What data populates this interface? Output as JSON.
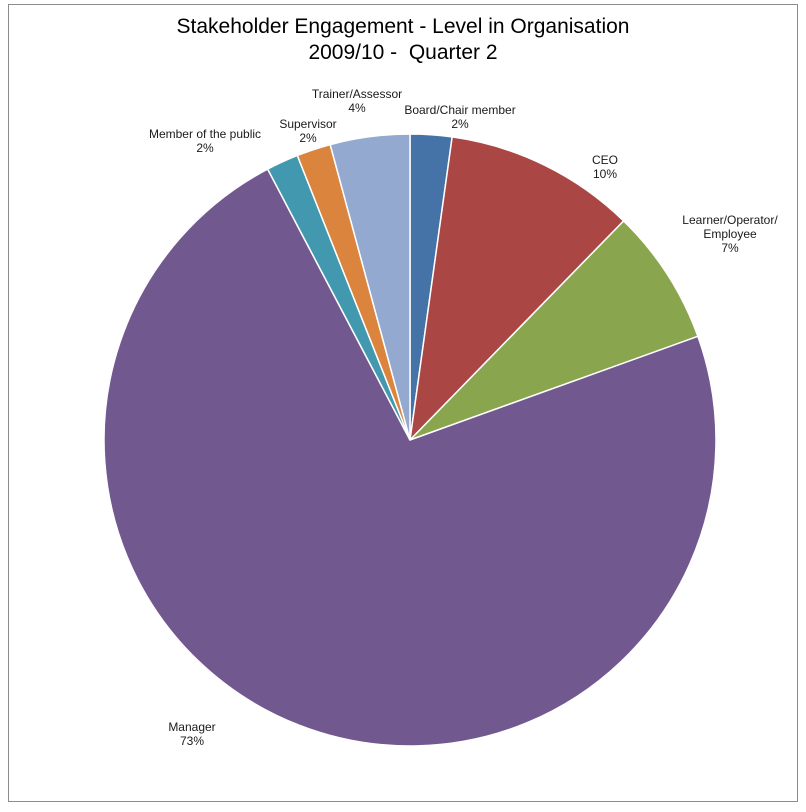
{
  "chart_data": {
    "type": "pie",
    "title": "Stakeholder Engagement - Level in Organisation",
    "subtitle": "2009/10 -  Quarter 2",
    "slices": [
      {
        "label": "Board/Chair member",
        "percent_label": "2%",
        "value": 2.2,
        "color": "#4572a7"
      },
      {
        "label": "CEO",
        "percent_label": "10%",
        "value": 10.1,
        "color": "#aa4643"
      },
      {
        "label": "Learner/Operator/ Employee",
        "percent_label": "7%",
        "value": 7.2,
        "color": "#89a54e"
      },
      {
        "label": "Manager",
        "percent_label": "73%",
        "value": 72.8,
        "color": "#71588f"
      },
      {
        "label": "Member of the public",
        "percent_label": "2%",
        "value": 1.7,
        "color": "#4198af"
      },
      {
        "label": "Supervisor",
        "percent_label": "2%",
        "value": 1.8,
        "color": "#db843d"
      },
      {
        "label": "Trainer/Assessor",
        "percent_label": "4%",
        "value": 4.2,
        "color": "#93a9cf"
      }
    ],
    "legend": "none",
    "data_labels": "outside"
  }
}
